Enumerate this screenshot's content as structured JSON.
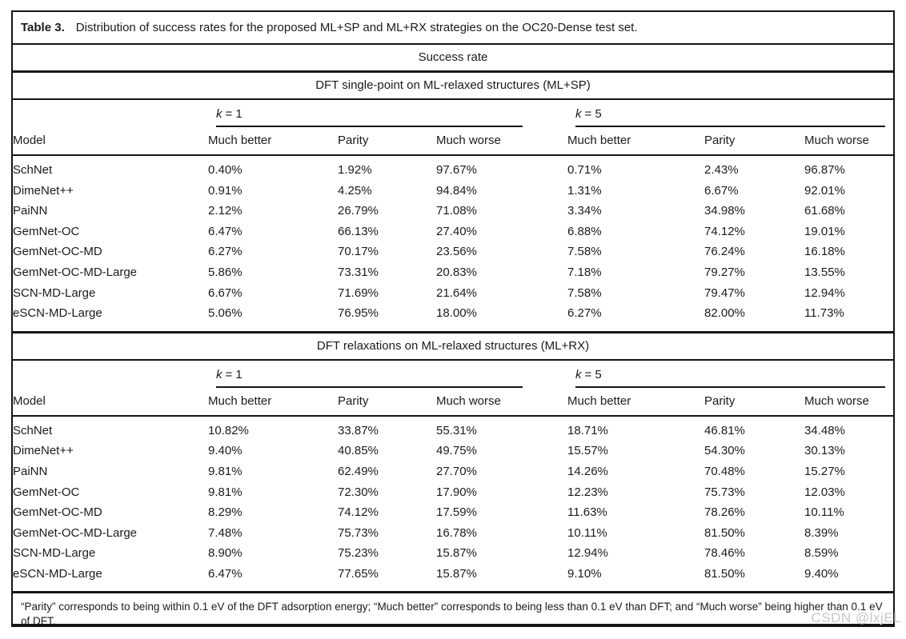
{
  "page": {
    "watermark": "CSDN @lxjEL"
  },
  "table": {
    "caption_label": "Table 3.",
    "caption_text": "Distribution of success rates for the proposed ML+SP and ML+RX strategies on the OC20-Dense test set.",
    "top_header": "Success rate",
    "columns": {
      "model": "Model",
      "much_better": "Much better",
      "parity": "Parity",
      "much_worse": "Much worse"
    },
    "k_groups": [
      {
        "k": "k",
        "value": "= 1"
      },
      {
        "k": "k",
        "value": "= 5"
      }
    ],
    "sections": [
      {
        "title": "DFT single-point on ML-relaxed structures (ML+SP)",
        "rows": [
          {
            "model": "SchNet",
            "values": [
              "0.40%",
              "1.92%",
              "97.67%",
              "0.71%",
              "2.43%",
              "96.87%"
            ]
          },
          {
            "model": "DimeNet++",
            "values": [
              "0.91%",
              "4.25%",
              "94.84%",
              "1.31%",
              "6.67%",
              "92.01%"
            ]
          },
          {
            "model": "PaiNN",
            "values": [
              "2.12%",
              "26.79%",
              "71.08%",
              "3.34%",
              "34.98%",
              "61.68%"
            ]
          },
          {
            "model": "GemNet-OC",
            "values": [
              "6.47%",
              "66.13%",
              "27.40%",
              "6.88%",
              "74.12%",
              "19.01%"
            ]
          },
          {
            "model": "GemNet-OC-MD",
            "values": [
              "6.27%",
              "70.17%",
              "23.56%",
              "7.58%",
              "76.24%",
              "16.18%"
            ]
          },
          {
            "model": "GemNet-OC-MD-Large",
            "values": [
              "5.86%",
              "73.31%",
              "20.83%",
              "7.18%",
              "79.27%",
              "13.55%"
            ]
          },
          {
            "model": "SCN-MD-Large",
            "values": [
              "6.67%",
              "71.69%",
              "21.64%",
              "7.58%",
              "79.47%",
              "12.94%"
            ]
          },
          {
            "model": "eSCN-MD-Large",
            "values": [
              "5.06%",
              "76.95%",
              "18.00%",
              "6.27%",
              "82.00%",
              "11.73%"
            ]
          }
        ]
      },
      {
        "title": "DFT relaxations on ML-relaxed structures (ML+RX)",
        "rows": [
          {
            "model": "SchNet",
            "values": [
              "10.82%",
              "33.87%",
              "55.31%",
              "18.71%",
              "46.81%",
              "34.48%"
            ]
          },
          {
            "model": "DimeNet++",
            "values": [
              "9.40%",
              "40.85%",
              "49.75%",
              "15.57%",
              "54.30%",
              "30.13%"
            ]
          },
          {
            "model": "PaiNN",
            "values": [
              "9.81%",
              "62.49%",
              "27.70%",
              "14.26%",
              "70.48%",
              "15.27%"
            ]
          },
          {
            "model": "GemNet-OC",
            "values": [
              "9.81%",
              "72.30%",
              "17.90%",
              "12.23%",
              "75.73%",
              "12.03%"
            ]
          },
          {
            "model": "GemNet-OC-MD",
            "values": [
              "8.29%",
              "74.12%",
              "17.59%",
              "11.63%",
              "78.26%",
              "10.11%"
            ]
          },
          {
            "model": "GemNet-OC-MD-Large",
            "values": [
              "7.48%",
              "75.73%",
              "16.78%",
              "10.11%",
              "81.50%",
              "8.39%"
            ]
          },
          {
            "model": "SCN-MD-Large",
            "values": [
              "8.90%",
              "75.23%",
              "15.87%",
              "12.94%",
              "78.46%",
              "8.59%"
            ]
          },
          {
            "model": "eSCN-MD-Large",
            "values": [
              "6.47%",
              "77.65%",
              "15.87%",
              "9.10%",
              "81.50%",
              "9.40%"
            ]
          }
        ]
      }
    ],
    "footnote": "“Parity” corresponds to being within 0.1 eV of the DFT adsorption energy; “Much better” corresponds to being less than 0.1 eV than DFT; and “Much worse” being higher than 0.1 eV of DFT."
  }
}
